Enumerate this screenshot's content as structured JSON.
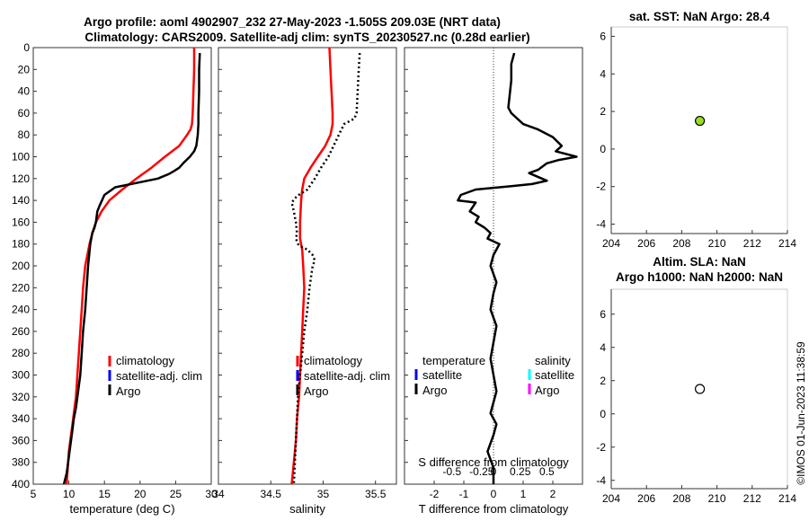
{
  "colors": {
    "climatology": "#ff0000",
    "satellite_clim": "#0000ff",
    "argo": "#000000",
    "salinity_satellite": "#00ffff",
    "salinity_argo": "#ff00ff",
    "sst_marker": "#99dd22"
  },
  "titles": {
    "line1": "Argo profile: aoml 4902907_232 27-May-2023 -1.505S 209.03E (NRT data)",
    "line2": "Climatology: CARS2009. Satellite-adj clim: synTS_20230527.nc (0.28d earlier)"
  },
  "side_text": "©IMOS 01-Jun-2023 11:38:59",
  "chart_data": [
    {
      "id": "temperature",
      "type": "line",
      "xlabel": "temperature (deg C)",
      "ylabel": "",
      "xlim": [
        5,
        30
      ],
      "ylim": [
        400,
        0
      ],
      "xticks": [
        5,
        10,
        15,
        20,
        25,
        30
      ],
      "yticks": [
        0,
        20,
        40,
        60,
        80,
        100,
        120,
        140,
        160,
        180,
        200,
        220,
        240,
        260,
        280,
        300,
        320,
        340,
        360,
        380,
        400
      ],
      "legend": [
        "climatology",
        "satellite-adj. clim",
        "Argo"
      ],
      "series": [
        {
          "name": "climatology",
          "color": "#ff0000",
          "x": [
            27.6,
            27.6,
            27.5,
            27.4,
            27.3,
            27.1,
            26.6,
            25.5,
            23.5,
            21.6,
            19.5,
            17.5,
            15.7,
            14.6,
            13.8,
            13.3,
            12.9,
            12.6,
            12.3,
            12.0,
            11.8,
            11.6,
            11.4,
            11.2,
            11.0,
            10.8,
            10.6,
            10.4,
            10.2,
            10.0,
            9.9,
            9.8,
            9.7
          ],
          "y": [
            0,
            20,
            40,
            60,
            70,
            75,
            80,
            90,
            100,
            110,
            120,
            130,
            140,
            150,
            160,
            170,
            180,
            190,
            200,
            220,
            240,
            260,
            280,
            300,
            320,
            330,
            340,
            350,
            360,
            370,
            380,
            390,
            400
          ]
        },
        {
          "name": "Argo",
          "color": "#000000",
          "x": [
            28.4,
            28.3,
            28.3,
            28.2,
            28.2,
            28.1,
            28.0,
            27.9,
            27.6,
            27.0,
            26.2,
            25.5,
            24.8,
            24.0,
            22.5,
            19.5,
            16.5,
            15.0,
            14.3,
            14.0,
            13.8,
            13.6,
            13.3,
            13.0,
            12.7,
            12.5,
            12.3,
            12.0,
            11.8,
            11.6,
            11.4,
            11.2,
            11.0,
            10.7,
            10.5,
            10.3,
            10.1,
            9.9,
            9.7,
            9.5,
            9.3
          ],
          "y": [
            5,
            20,
            40,
            60,
            70,
            80,
            85,
            90,
            95,
            100,
            105,
            110,
            113,
            116,
            120,
            124,
            128,
            135,
            145,
            150,
            160,
            165,
            170,
            180,
            200,
            220,
            240,
            260,
            280,
            300,
            310,
            320,
            330,
            340,
            350,
            360,
            370,
            380,
            390,
            395,
            400
          ]
        }
      ]
    },
    {
      "id": "salinity",
      "type": "line",
      "xlabel": "salinity",
      "xlim": [
        34,
        35.7
      ],
      "ylim": [
        400,
        0
      ],
      "xticks": [
        34,
        34.5,
        35,
        35.5
      ],
      "legend": [
        "climatology",
        "satellite-adj. clim",
        "Argo"
      ],
      "series": [
        {
          "name": "climatology",
          "color": "#ff0000",
          "x": [
            35.06,
            35.07,
            35.08,
            35.09,
            35.09,
            35.07,
            35.02,
            34.95,
            34.88,
            34.82,
            34.8,
            34.79,
            34.78,
            34.78,
            34.8,
            34.81,
            34.82,
            34.81,
            34.8,
            34.79,
            34.78,
            34.77,
            34.75,
            34.74,
            34.72,
            34.71,
            34.7
          ],
          "y": [
            0,
            20,
            40,
            60,
            70,
            80,
            90,
            100,
            110,
            120,
            130,
            140,
            160,
            175,
            185,
            200,
            220,
            240,
            260,
            280,
            300,
            320,
            340,
            360,
            380,
            390,
            400
          ]
        },
        {
          "name": "Argo",
          "color": "#000000",
          "style": "dotted",
          "x": [
            35.35,
            35.34,
            35.33,
            35.32,
            35.31,
            35.3,
            35.2,
            35.15,
            35.1,
            35.05,
            34.98,
            34.92,
            34.85,
            34.75,
            34.7,
            34.72,
            34.73,
            34.74,
            34.75,
            34.74,
            34.76,
            34.8,
            34.85,
            34.9,
            34.92,
            34.9,
            34.87,
            34.85,
            34.82,
            34.8,
            34.78,
            34.76,
            34.75,
            34.74,
            34.72
          ],
          "y": [
            5,
            20,
            40,
            60,
            62,
            65,
            70,
            80,
            90,
            100,
            110,
            120,
            130,
            136,
            142,
            150,
            155,
            160,
            170,
            175,
            180,
            183,
            185,
            190,
            195,
            200,
            220,
            240,
            260,
            280,
            300,
            320,
            340,
            360,
            400
          ]
        }
      ]
    },
    {
      "id": "difference",
      "type": "line",
      "xlabel": "T difference from climatology",
      "xlabel_top": "S difference from climatology",
      "xlim": [
        -3,
        3
      ],
      "ylim": [
        400,
        0
      ],
      "xticks": [
        -2,
        -1,
        0,
        1,
        2
      ],
      "xticks_s": [
        "-0.5",
        "-0.25",
        "0",
        "0.25",
        "0.5"
      ],
      "legend_left_title": "temperature",
      "legend_right_title": "salinity",
      "legend_left": [
        "satellite",
        "Argo"
      ],
      "legend_right": [
        "satellite",
        "Argo"
      ],
      "series": [
        {
          "name": "Argo T diff",
          "color": "#000000",
          "x": [
            0.7,
            0.6,
            0.6,
            0.5,
            0.6,
            0.8,
            1.0,
            1.5,
            2.0,
            2.3,
            2.1,
            2.8,
            2.2,
            1.8,
            1.5,
            1.2,
            1.8,
            1.3,
            0.6,
            -0.6,
            -1.1,
            -1.2,
            -0.6,
            -0.8,
            -0.5,
            -0.6,
            -0.3,
            -0.1,
            -0.2,
            0.2,
            0.0,
            -0.1,
            0.1,
            0.0,
            -0.1,
            0.1,
            0.0,
            -0.1,
            0.0,
            0.1,
            0.0,
            -0.1,
            0.1,
            0.0,
            -0.2,
            0.0,
            0.0
          ],
          "y": [
            5,
            15,
            30,
            55,
            60,
            65,
            70,
            75,
            82,
            90,
            95,
            100,
            103,
            106,
            112,
            115,
            122,
            125,
            127,
            130,
            135,
            140,
            142,
            150,
            155,
            160,
            165,
            170,
            175,
            180,
            190,
            200,
            215,
            225,
            240,
            255,
            270,
            285,
            300,
            315,
            325,
            335,
            345,
            355,
            370,
            385,
            400
          ]
        }
      ]
    },
    {
      "id": "sst",
      "type": "scatter",
      "title": "sat. SST: NaN Argo: 28.4",
      "xlim": [
        204,
        214
      ],
      "ylim": [
        -4.5,
        6.5
      ],
      "xticks": [
        204,
        206,
        208,
        210,
        212,
        214
      ],
      "yticks": [
        -4,
        -2,
        0,
        2,
        4,
        6
      ],
      "points": [
        {
          "x": 209.03,
          "y": 1.5
        }
      ]
    },
    {
      "id": "sla",
      "type": "scatter",
      "title_line1": "Altim. SLA: NaN",
      "title_line2": "Argo h1000: NaN h2000: NaN",
      "xlim": [
        204,
        214
      ],
      "ylim": [
        -4.5,
        7.5
      ],
      "xticks": [
        204,
        206,
        208,
        210,
        212,
        214
      ],
      "yticks": [
        -4,
        -2,
        0,
        2,
        4,
        6
      ],
      "points": [
        {
          "x": 209.03,
          "y": 1.5
        }
      ]
    }
  ]
}
